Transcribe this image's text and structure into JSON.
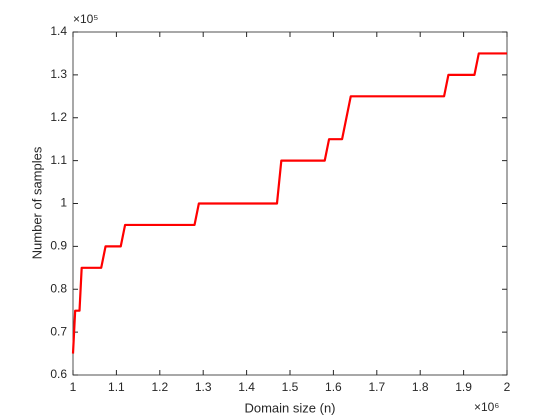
{
  "chart_data": {
    "type": "line",
    "xlabel": "Domain size (n)",
    "ylabel": "Number of samples",
    "x_multiplier": "×10⁶",
    "y_multiplier": "×10⁵",
    "x": [
      1.0,
      1.005,
      1.015,
      1.02,
      1.065,
      1.075,
      1.11,
      1.12,
      1.28,
      1.29,
      1.47,
      1.48,
      1.58,
      1.59,
      1.62,
      1.64,
      1.855,
      1.865,
      1.925,
      1.935,
      2.0
    ],
    "series": [
      {
        "color": "#ff0000",
        "values": [
          0.65,
          0.75,
          0.75,
          0.85,
          0.85,
          0.9,
          0.9,
          0.95,
          0.95,
          1.0,
          1.0,
          1.1,
          1.1,
          1.15,
          1.15,
          1.25,
          1.25,
          1.3,
          1.3,
          1.35,
          1.35
        ]
      }
    ],
    "xlim": [
      1,
      2
    ],
    "xticks": [
      1,
      1.1,
      1.2,
      1.3,
      1.4,
      1.5,
      1.6,
      1.7,
      1.8,
      1.9,
      2
    ],
    "ylim": [
      0.6,
      1.4
    ],
    "yticks": [
      0.6,
      0.7,
      0.8,
      0.9,
      1,
      1.1,
      1.2,
      1.3,
      1.4
    ],
    "grid": false
  }
}
